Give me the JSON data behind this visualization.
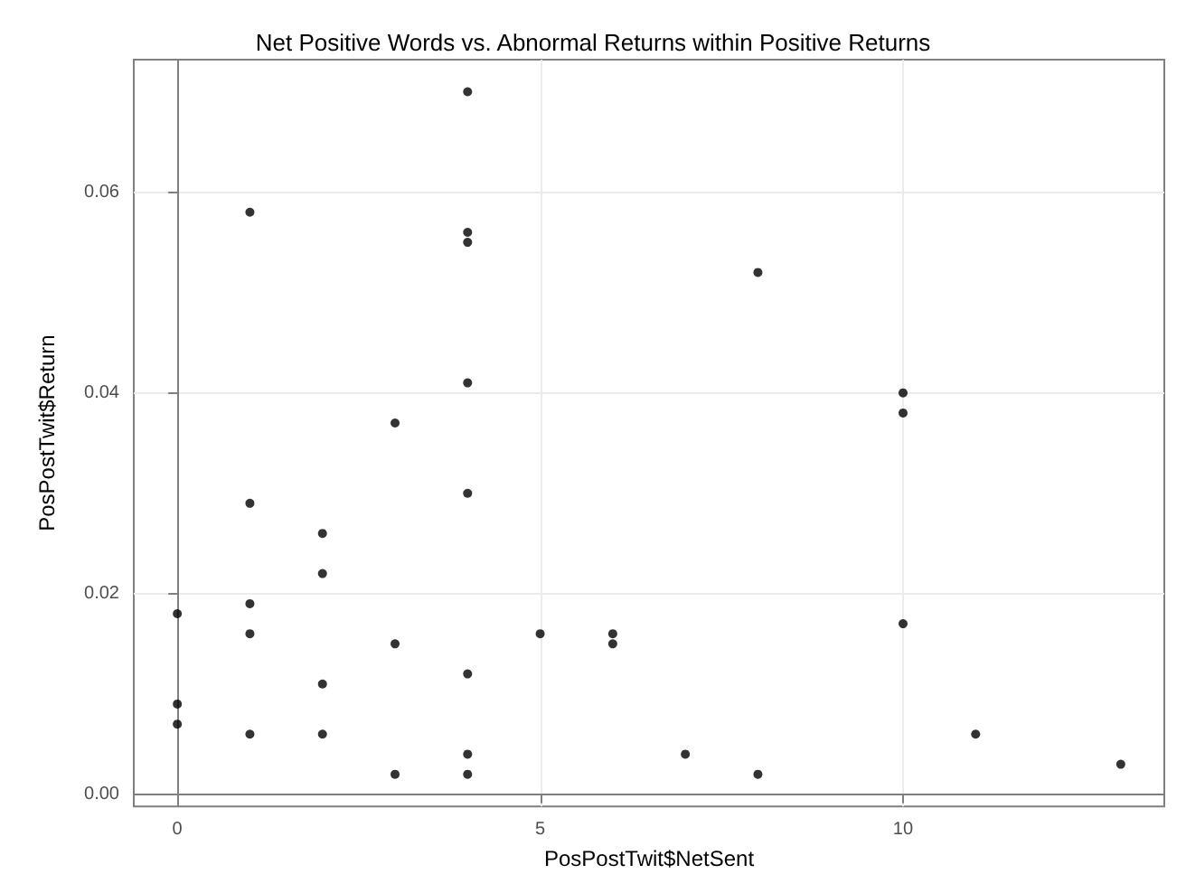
{
  "chart_data": {
    "type": "scatter",
    "title": "Net Positive Words vs. Abnormal Returns within Positive Returns",
    "xlabel": "PosPostTwit$NetSent",
    "ylabel": "PosPostTwit$Return",
    "x": [
      0,
      0,
      0,
      1,
      1,
      1,
      1,
      1,
      2,
      2,
      2,
      2,
      3,
      3,
      3,
      4,
      4,
      4,
      4,
      4,
      4,
      4,
      4,
      5,
      6,
      6,
      7,
      8,
      8,
      10,
      10,
      10,
      11,
      13
    ],
    "values": [
      0.018,
      0.009,
      0.007,
      0.058,
      0.029,
      0.019,
      0.016,
      0.006,
      0.026,
      0.022,
      0.011,
      0.006,
      0.037,
      0.015,
      0.002,
      0.07,
      0.056,
      0.055,
      0.041,
      0.03,
      0.012,
      0.004,
      0.002,
      0.016,
      0.016,
      0.015,
      0.004,
      0.052,
      0.002,
      0.04,
      0.038,
      0.017,
      0.006,
      0.003
    ],
    "color": "#000000",
    "marker": "circle",
    "grid": true,
    "xlim": [
      -0.6,
      13.6
    ],
    "xticks": [
      0,
      5,
      10
    ],
    "ylim": [
      -0.0012,
      0.0732
    ],
    "yticks": [
      {
        "value": 0,
        "label": "0.00"
      },
      {
        "value": 0.02,
        "label": "0.02"
      },
      {
        "value": 0.04,
        "label": "0.04"
      },
      {
        "value": 0.06,
        "label": "0.06"
      }
    ]
  }
}
